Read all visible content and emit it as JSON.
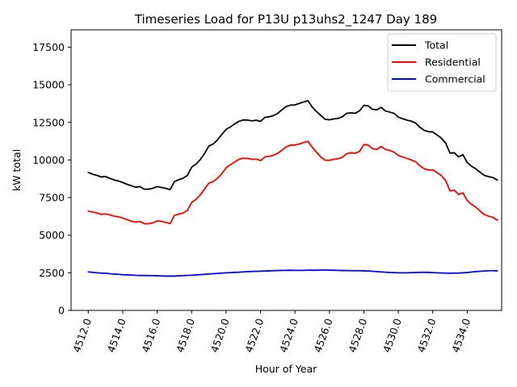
{
  "chart_data": {
    "type": "line",
    "title": "Timeseries Load for P13U p13uhs2_1247  Day 189",
    "xlabel": "Hour of Year",
    "ylabel": "kW total",
    "xlim": [
      4511.0,
      4536.0
    ],
    "ylim": [
      0,
      18650
    ],
    "x_ticks": [
      4512.0,
      4514.0,
      4516.0,
      4518.0,
      4520.0,
      4522.0,
      4524.0,
      4526.0,
      4528.0,
      4530.0,
      4532.0,
      4534.0
    ],
    "x_tick_labels": [
      "4512.0",
      "4514.0",
      "4516.0",
      "4518.0",
      "4520.0",
      "4522.0",
      "4524.0",
      "4526.0",
      "4528.0",
      "4530.0",
      "4532.0",
      "4534.0"
    ],
    "y_ticks": [
      0,
      2500,
      5000,
      7500,
      10000,
      12500,
      15000,
      17500
    ],
    "y_tick_labels": [
      "0",
      "2500",
      "5000",
      "7500",
      "10000",
      "12500",
      "15000",
      "17500"
    ],
    "grid": false,
    "legend_position": "top-right",
    "x": [
      4512.0,
      4512.25,
      4512.5,
      4512.75,
      4513.0,
      4513.25,
      4513.5,
      4513.75,
      4514.0,
      4514.25,
      4514.5,
      4514.75,
      4515.0,
      4515.25,
      4515.5,
      4515.75,
      4516.0,
      4516.25,
      4516.5,
      4516.75,
      4517.0,
      4517.25,
      4517.5,
      4517.75,
      4518.0,
      4518.25,
      4518.5,
      4518.75,
      4519.0,
      4519.25,
      4519.5,
      4519.75,
      4520.0,
      4520.25,
      4520.5,
      4520.75,
      4521.0,
      4521.25,
      4521.5,
      4521.75,
      4522.0,
      4522.25,
      4522.5,
      4522.75,
      4523.0,
      4523.25,
      4523.5,
      4523.75,
      4524.0,
      4524.25,
      4524.5,
      4524.75,
      4525.0,
      4525.25,
      4525.5,
      4525.75,
      4526.0,
      4526.25,
      4526.5,
      4526.75,
      4527.0,
      4527.25,
      4527.5,
      4527.75,
      4528.0,
      4528.25,
      4528.5,
      4528.75,
      4529.0,
      4529.25,
      4529.5,
      4529.75,
      4530.0,
      4530.25,
      4530.5,
      4530.75,
      4531.0,
      4531.25,
      4531.5,
      4531.75,
      4532.0,
      4532.25,
      4532.5,
      4532.75,
      4533.0,
      4533.25,
      4533.5,
      4533.75,
      4534.0,
      4534.25,
      4534.5,
      4534.75,
      4535.0,
      4535.25,
      4535.5,
      4535.75
    ],
    "series": [
      {
        "name": "Total",
        "color": "#000000",
        "values": [
          9170,
          9050,
          8980,
          8870,
          8900,
          8780,
          8670,
          8600,
          8500,
          8380,
          8290,
          8190,
          8230,
          8060,
          8060,
          8120,
          8230,
          8170,
          8110,
          8030,
          8560,
          8690,
          8780,
          8970,
          9520,
          9720,
          10020,
          10430,
          10930,
          11060,
          11330,
          11690,
          12030,
          12200,
          12400,
          12570,
          12660,
          12650,
          12600,
          12640,
          12560,
          12830,
          12870,
          12950,
          13100,
          13340,
          13560,
          13650,
          13660,
          13760,
          13850,
          13940,
          13520,
          13220,
          12960,
          12700,
          12670,
          12730,
          12760,
          12870,
          13100,
          13130,
          13100,
          13270,
          13630,
          13600,
          13370,
          13330,
          13500,
          13260,
          13180,
          13100,
          12850,
          12740,
          12650,
          12580,
          12460,
          12170,
          11970,
          11880,
          11860,
          11660,
          11450,
          11120,
          10460,
          10480,
          10200,
          10350,
          9830,
          9580,
          9410,
          9180,
          8970,
          8890,
          8830,
          8660
        ]
      },
      {
        "name": "Residential",
        "color": "#ff0000",
        "values": [
          6600,
          6540,
          6480,
          6380,
          6420,
          6350,
          6260,
          6220,
          6140,
          6030,
          5930,
          5870,
          5910,
          5760,
          5760,
          5820,
          5950,
          5920,
          5840,
          5780,
          6320,
          6400,
          6470,
          6640,
          7180,
          7380,
          7680,
          8070,
          8460,
          8570,
          8780,
          9090,
          9480,
          9690,
          9870,
          10050,
          10120,
          10100,
          10040,
          10060,
          9960,
          10200,
          10250,
          10310,
          10450,
          10660,
          10880,
          10990,
          10990,
          11060,
          11160,
          11240,
          10840,
          10510,
          10190,
          9980,
          9980,
          10040,
          10090,
          10180,
          10420,
          10480,
          10440,
          10580,
          11030,
          10990,
          10750,
          10700,
          10900,
          10700,
          10630,
          10520,
          10300,
          10200,
          10100,
          10000,
          9880,
          9610,
          9420,
          9330,
          9340,
          9160,
          8960,
          8620,
          7940,
          7990,
          7700,
          7820,
          7300,
          7040,
          6860,
          6600,
          6360,
          6260,
          6180,
          6000
        ]
      },
      {
        "name": "Commercial",
        "color": "#0000ff",
        "values": [
          2560,
          2530,
          2500,
          2480,
          2470,
          2440,
          2420,
          2400,
          2370,
          2360,
          2350,
          2330,
          2320,
          2320,
          2310,
          2310,
          2300,
          2290,
          2280,
          2280,
          2280,
          2300,
          2310,
          2330,
          2340,
          2360,
          2380,
          2400,
          2420,
          2440,
          2460,
          2480,
          2500,
          2510,
          2530,
          2540,
          2560,
          2580,
          2590,
          2600,
          2610,
          2620,
          2630,
          2640,
          2650,
          2660,
          2660,
          2670,
          2660,
          2660,
          2660,
          2680,
          2670,
          2670,
          2680,
          2680,
          2680,
          2670,
          2660,
          2650,
          2650,
          2640,
          2640,
          2640,
          2630,
          2620,
          2600,
          2580,
          2560,
          2540,
          2520,
          2510,
          2500,
          2500,
          2500,
          2510,
          2520,
          2530,
          2530,
          2530,
          2510,
          2500,
          2490,
          2480,
          2470,
          2480,
          2480,
          2500,
          2520,
          2550,
          2580,
          2600,
          2620,
          2640,
          2640,
          2630
        ]
      }
    ]
  }
}
